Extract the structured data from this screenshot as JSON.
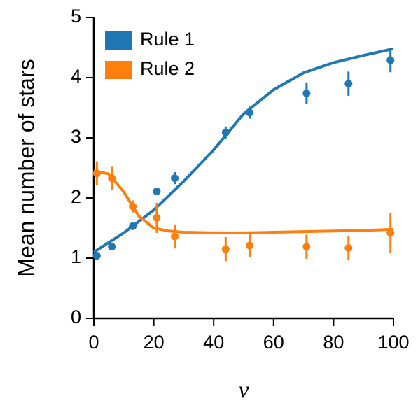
{
  "chart_data": {
    "type": "scatter",
    "ylabel": "Mean number of stars",
    "xlabel": "v",
    "xlim": [
      0,
      100
    ],
    "xticks": [
      0,
      20,
      40,
      60,
      80,
      100
    ],
    "ylim": [
      0,
      5
    ],
    "yticks": [
      0,
      1,
      2,
      3,
      4,
      5
    ],
    "legend": "upper left",
    "series": [
      {
        "name": "Rule 1",
        "color": "#1f77b4",
        "x": [
          1,
          6,
          13,
          21,
          27,
          44,
          52,
          71,
          85,
          99
        ],
        "values": [
          1.04,
          1.19,
          1.53,
          2.11,
          2.33,
          3.09,
          3.42,
          3.74,
          3.9,
          4.29
        ],
        "errors": [
          0.05,
          0.05,
          0.05,
          0.06,
          0.1,
          0.1,
          0.1,
          0.18,
          0.2,
          0.2
        ],
        "fit_x": [
          0,
          10,
          20,
          30,
          40,
          50,
          60,
          70,
          80,
          90,
          100
        ],
        "fit_values": [
          1.1,
          1.42,
          1.8,
          2.28,
          2.8,
          3.4,
          3.8,
          4.08,
          4.25,
          4.37,
          4.48
        ]
      },
      {
        "name": "Rule 2",
        "color": "#ff7f0e",
        "x": [
          1,
          6,
          13,
          21,
          27,
          44,
          52,
          71,
          85,
          99
        ],
        "values": [
          2.41,
          2.33,
          1.86,
          1.67,
          1.36,
          1.15,
          1.21,
          1.19,
          1.17,
          1.42
        ],
        "errors": [
          0.2,
          0.2,
          0.1,
          0.25,
          0.2,
          0.2,
          0.2,
          0.2,
          0.2,
          0.33
        ],
        "fit_x": [
          0,
          5,
          10,
          15,
          20,
          25,
          30,
          40,
          50,
          60,
          70,
          80,
          90,
          100
        ],
        "fit_values": [
          2.45,
          2.4,
          2.1,
          1.7,
          1.5,
          1.45,
          1.43,
          1.42,
          1.42,
          1.43,
          1.44,
          1.45,
          1.46,
          1.48
        ]
      }
    ]
  }
}
